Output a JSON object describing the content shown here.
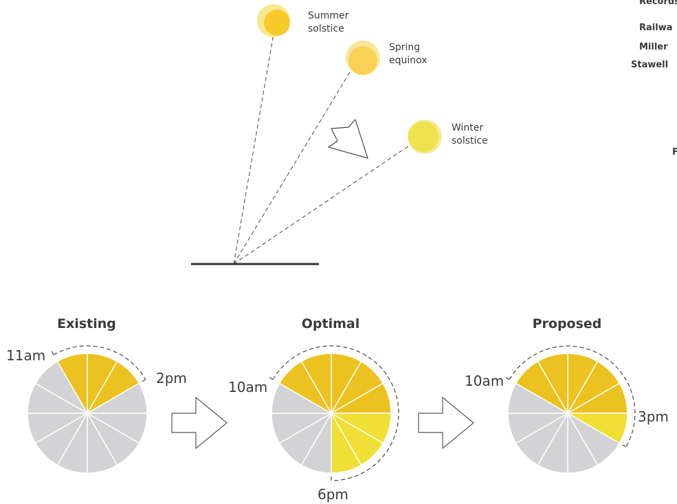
{
  "suns": [
    {
      "line1": "Summer",
      "line2": "solstice"
    },
    {
      "line1": "Spring",
      "line2": "equinox"
    },
    {
      "line1": "Winter",
      "line2": "solstice"
    }
  ],
  "edge_labels": [
    "Records",
    "Railwa",
    "Miller",
    "Stawell",
    "F"
  ],
  "pies": [
    {
      "title": "Existing",
      "sunlit_hours": [
        11,
        12,
        13
      ],
      "start_label": "11am",
      "end_label": "2pm"
    },
    {
      "title": "Optimal",
      "sunlit_hours": [
        10,
        11,
        12,
        13,
        14,
        15,
        16,
        17
      ],
      "start_label": "10am",
      "end_label": "6pm"
    },
    {
      "title": "Proposed",
      "sunlit_hours": [
        10,
        11,
        12,
        13,
        14,
        15
      ],
      "start_label": "10am",
      "end_label": "3pm"
    }
  ],
  "colors": {
    "amber": "#ecc221",
    "yellow": "#f0df34",
    "grey": "#d3d3d5",
    "summer_sun": "#f8c92a",
    "summer_sun_halo": "#f7e98d",
    "spring_sun": "#f9d156",
    "spring_sun_halo": "#f8e89d",
    "winter_sun": "#eee34c",
    "winter_sun_halo": "#f2ec93"
  }
}
